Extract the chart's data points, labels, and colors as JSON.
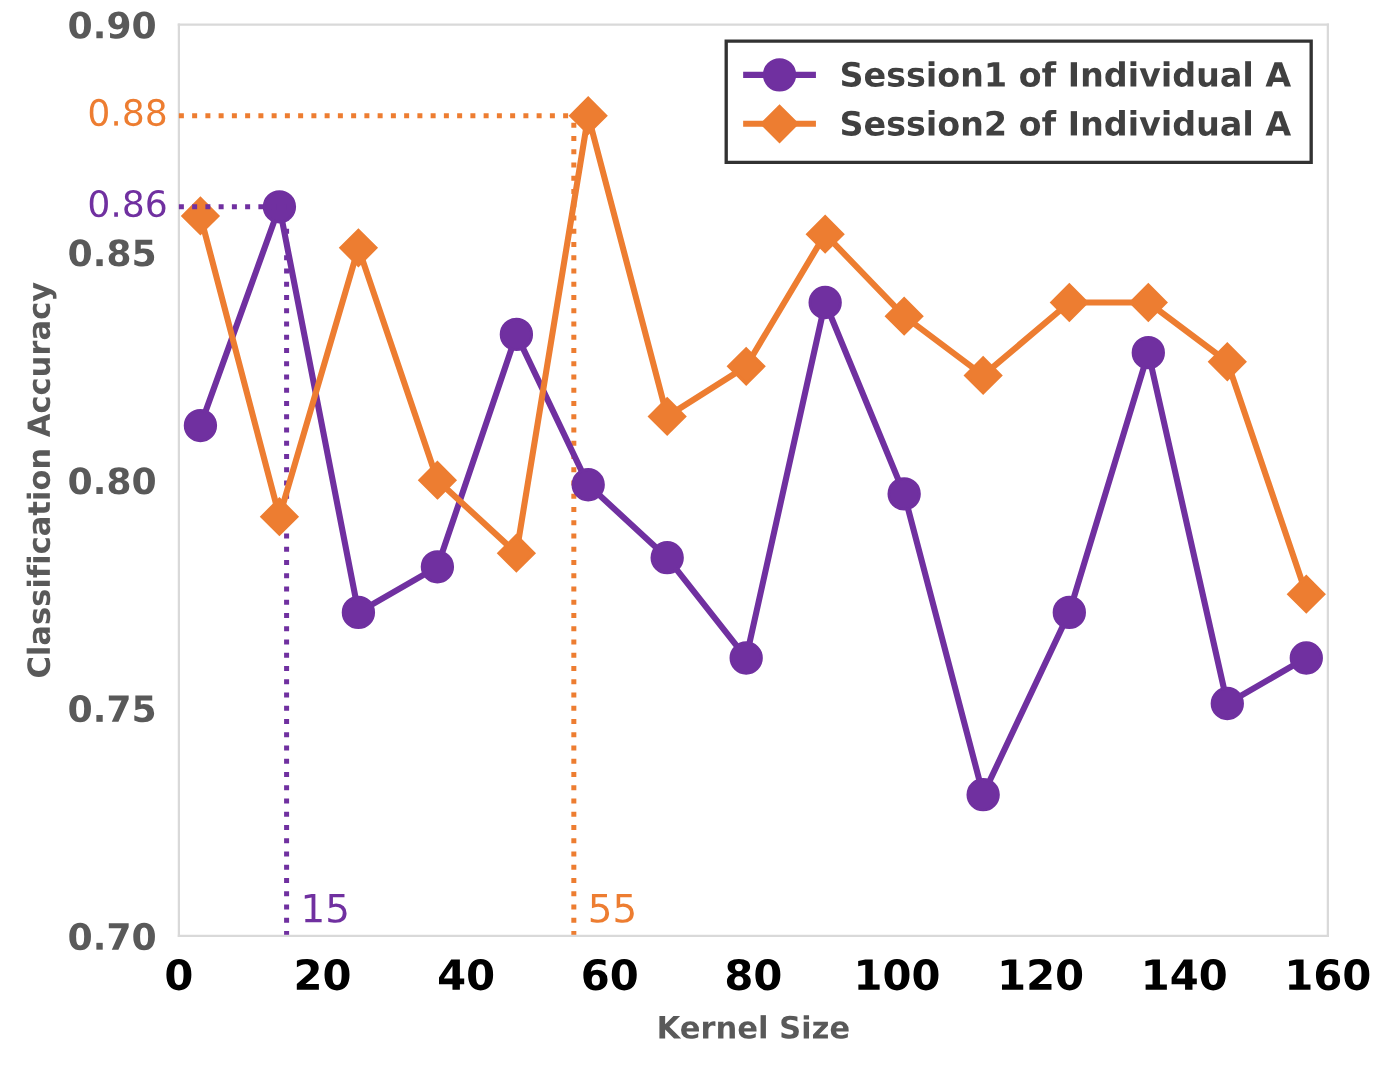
{
  "chart_data": {
    "type": "line",
    "xlabel": "Kernel Size",
    "ylabel": "Classification Accuracy",
    "x": [
      3,
      14,
      25,
      36,
      47,
      57,
      68,
      79,
      90,
      101,
      112,
      124,
      135,
      146,
      157
    ],
    "series": [
      {
        "name": "Session1 of Individual A",
        "color": "#7030a0",
        "marker": "circle",
        "values": [
          0.812,
          0.86,
          0.771,
          0.781,
          0.832,
          0.799,
          0.783,
          0.761,
          0.839,
          0.797,
          0.731,
          0.771,
          0.828,
          0.751,
          0.761
        ]
      },
      {
        "name": "Session2 of Individual A",
        "color": "#ed7d31",
        "marker": "diamond",
        "values": [
          0.858,
          0.792,
          0.851,
          0.8,
          0.784,
          0.88,
          0.814,
          0.825,
          0.854,
          0.836,
          0.823,
          0.839,
          0.839,
          0.826,
          0.775
        ]
      }
    ],
    "xlim": [
      0,
      160
    ],
    "ylim": [
      0.7,
      0.9
    ],
    "xticks": [
      0,
      20,
      40,
      60,
      80,
      100,
      120,
      140,
      160
    ],
    "yticks": [
      {
        "value": 0.7,
        "label": "0.70"
      },
      {
        "value": 0.75,
        "label": "0.75"
      },
      {
        "value": 0.8,
        "label": "0.80"
      },
      {
        "value": 0.85,
        "label": "0.85"
      },
      {
        "value": 0.9,
        "label": "0.90"
      }
    ],
    "ref_lines": [
      {
        "axis": "y",
        "value": 0.86,
        "label": "0.86",
        "color": "#7030a0",
        "line_style": "dotted"
      },
      {
        "axis": "x",
        "value": 15,
        "label": "15",
        "color": "#7030a0",
        "line_style": "dotted"
      },
      {
        "axis": "y",
        "value": 0.88,
        "label": "0.88",
        "color": "#ed7d31",
        "line_style": "dotted"
      },
      {
        "axis": "x",
        "value": 55,
        "label": "55",
        "color": "#ed7d31",
        "line_style": "dotted"
      }
    ],
    "grid": false,
    "legend": "top right",
    "line_style": "solid"
  }
}
